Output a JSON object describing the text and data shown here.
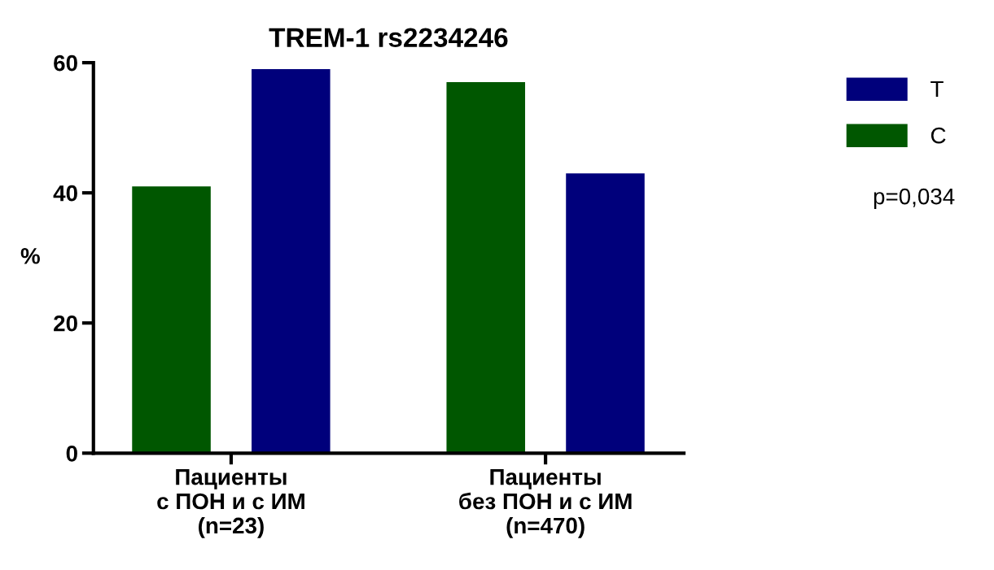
{
  "chart_data": {
    "type": "bar",
    "title": "TREM-1 rs2234246",
    "ylabel": "%",
    "categories": [
      "Пациенты\nс ПОН и с ИМ\n(n=23)",
      "Пациенты\nбез ПОН и с ИМ\n(n=470)"
    ],
    "series": [
      {
        "name": "C",
        "color": "#005700",
        "values": [
          41,
          57
        ]
      },
      {
        "name": "T",
        "color": "#00007b",
        "values": [
          59,
          43
        ]
      }
    ],
    "ylim": [
      0,
      60
    ],
    "yticks": [
      0,
      20,
      40,
      60
    ],
    "grid": false,
    "legend": "right",
    "annotations": [
      "p=0,034"
    ]
  }
}
